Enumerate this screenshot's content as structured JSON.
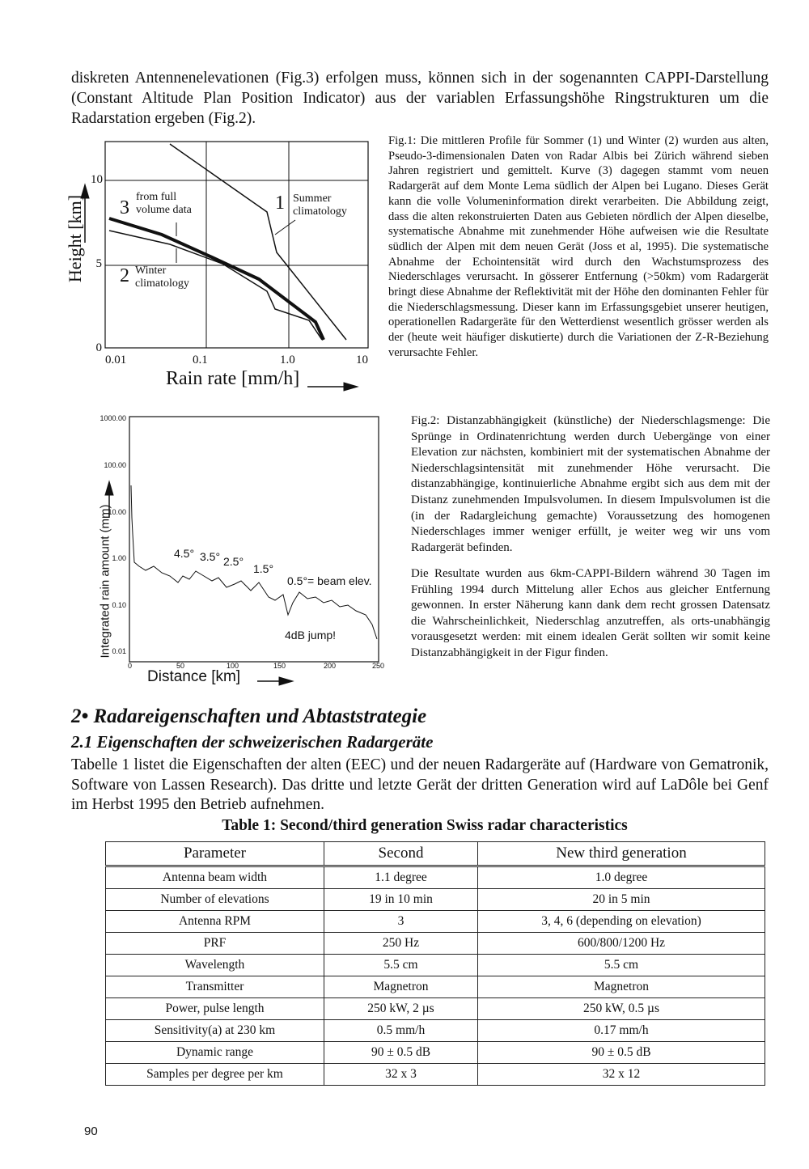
{
  "body": {
    "paragraph": "diskreten Antennenelevationen (Fig.3) erfolgen muss, können sich in der sogenannten CAPPI-Darstellung (Constant Altitude Plan Position Indicator) aus der variablen Erfassungshöhe Ringstrukturen um die Radarstation ergeben (Fig.2)."
  },
  "figure_1": {
    "y_label": "Height [km]",
    "x_label": "Rain rate [mm/h]",
    "x_ticks": [
      "0.01",
      "0.1",
      "1.0",
      "10"
    ],
    "y_ticks": [
      "0",
      "5",
      "10"
    ],
    "annotations": {
      "curve_3_number": "3",
      "curve_3_text": "from full volume data",
      "curve_1_number": "1",
      "curve_1_text": "Summer climatology",
      "curve_2_number": "2",
      "curve_2_text": "Winter climatology"
    },
    "caption": "Fig.1: Die mittleren Profile für Sommer (1) und Winter (2) wurden aus alten, Pseudo-3-dimensionalen Daten von Radar Albis bei Zürich während sieben Jahren registriert und gemittelt. Kurve (3) dagegen stammt vom neuen Radargerät auf dem Monte Lema südlich der Alpen bei Lugano. Dieses Gerät kann die volle Volumeninformation direkt verarbeiten. Die Abbildung zeigt, dass die alten rekonstruierten Daten aus Gebieten nördlich der Alpen dieselbe, systematische Abnahme mit zunehmender Höhe aufweisen wie die Resultate südlich der Alpen mit dem neuen Gerät (Joss et al, 1995). Die systematische Abnahme der Echointensität wird durch den Wachstumsprozess des Niederschlages verursacht. In gösserer Entfernung (>50km) vom Radargerät bringt diese Abnahme der Reflektivität mit der Höhe den dominanten Fehler für die Niederschlagsmessung. Dieser kann im Erfassungsgebiet unserer heutigen, operationellen Radargeräte für den Wetterdienst wesentlich grösser werden als der (heute weit häufiger diskutierte) durch die Variationen der Z-R-Beziehung verursachte Fehler."
  },
  "figure_2": {
    "y_label": "Integrated rain amount (mm)",
    "x_label": "Distance [km]",
    "x_ticks": [
      "0",
      "50",
      "100",
      "150",
      "200",
      "250"
    ],
    "y_ticks": [
      "1000.00",
      "100.00",
      "10.00",
      "1.00",
      "0.10",
      "0.01"
    ],
    "annotations": {
      "elev_4_5": "4.5°",
      "elev_3_5": "3.5°",
      "elev_2_5": "2.5°",
      "elev_1_5": "1.5°",
      "elev_0_5": "0.5°= beam elev.",
      "jump": "4dB jump!"
    },
    "caption": "Fig.2: Distanzabhängigkeit (künstliche) der Niederschlagsmenge: Die Sprünge in Ordinatenrichtung werden durch Uebergänge von einer Elevation zur nächsten, kombiniert mit der systematischen Abnahme der Niederschlagsintensität mit zunehmender Höhe verursacht. Die distanzabhängige, kontinuierliche Abnahme ergibt sich aus dem mit der Distanz zunehmenden Impulsvolumen. In diesem Impulsvolumen ist die (in der Radargleichung gemachte) Voraussetzung des homogenen Niederschlages immer weniger erfüllt, je weiter weg wir uns vom Radargerät befinden.",
    "paragraph": "Die Resultate wurden aus 6km-CAPPI-Bildern während 30 Tagen im Frühling 1994 durch Mittelung aller Echos aus gleicher Entfernung gewonnen. In erster Näherung kann dank dem recht grossen Datensatz die Wahrscheinlichkeit, Niederschlag anzutreffen, als orts-unabhängig vorausgesetzt werden: mit einem idealen Gerät sollten wir somit keine Distanzabhängigkeit in der Figur finden."
  },
  "section": {
    "heading": "2• Radareigenschaften und Abtaststrategie",
    "subheading": "2.1 Eigenschaften der schweizerischen Radargeräte",
    "paragraph": "Tabelle 1 listet die Eigenschaften der alten (EEC) und der neuen Radargeräte auf (Hardware von Gematronik, Software von Lassen Research). Das dritte und letzte Gerät der dritten Generation wird auf LaDôle bei Genf im Herbst 1995 den Betrieb aufnehmen."
  },
  "table": {
    "title": "Table 1: Second/third generation Swiss radar characteristics",
    "header": [
      "Parameter",
      "Second",
      "New third generation"
    ],
    "rows": [
      [
        "Antenna beam width",
        "1.1 degree",
        "1.0 degree"
      ],
      [
        "Number of elevations",
        "19 in 10 min",
        "20 in 5 min"
      ],
      [
        "Antenna RPM",
        "3",
        "3, 4, 6 (depending on elevation)"
      ],
      [
        "PRF",
        "250 Hz",
        "600/800/1200 Hz"
      ],
      [
        "Wavelength",
        "5.5 cm",
        "5.5 cm"
      ],
      [
        "Transmitter",
        "Magnetron",
        "Magnetron"
      ],
      [
        "Power, pulse length",
        "250 kW, 2 µs",
        "250 kW, 0.5 µs"
      ],
      [
        "Sensitivity(a) at 230 km",
        "0.5 mm/h",
        "0.17 mm/h"
      ],
      [
        "Dynamic range",
        "90 ± 0.5 dB",
        "90 ± 0.5 dB"
      ],
      [
        "Samples per degree per km",
        "32 x 3",
        "32 x 12"
      ]
    ]
  },
  "page_number": "90"
}
